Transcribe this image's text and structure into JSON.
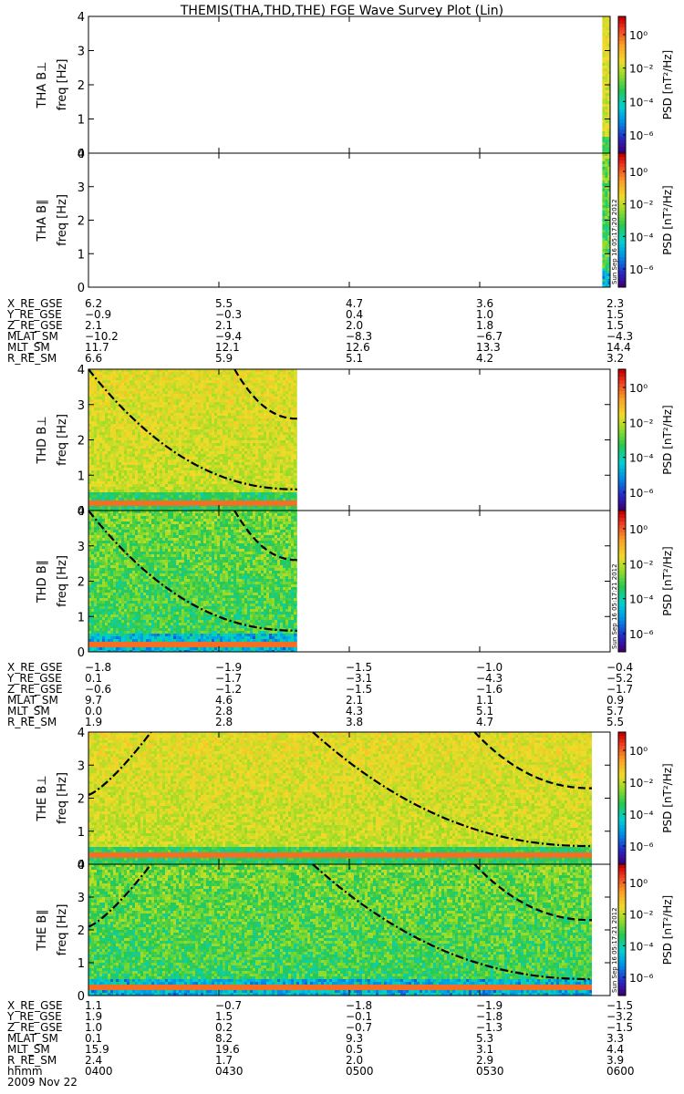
{
  "title": "THEMIS(THA,THD,THE) FGE Wave Survey Plot (Lin)",
  "freq_axis_label": "freq [Hz]",
  "colorbar": {
    "label": "PSD [nT²/Hz]",
    "scale": "log",
    "ticks": [
      "10⁰",
      "10⁻²",
      "10⁻⁴",
      "10⁻⁶"
    ]
  },
  "x_ticks": [
    "0400",
    "0430",
    "0500",
    "0530",
    "0600"
  ],
  "date_label": "2009 Nov 22",
  "time_row_label": "hhmm",
  "chart_data": [
    {
      "type": "heatmap",
      "title": "THA B⊥",
      "x": [
        "0400",
        "0600"
      ],
      "ylim": [
        0,
        4
      ],
      "y_ticks": [
        0,
        1,
        2,
        3,
        4
      ],
      "data_x_range": [
        0.985,
        1.0
      ],
      "curves": [],
      "bands": [],
      "stamp": ""
    },
    {
      "type": "heatmap",
      "title": "THA B∥",
      "x": [
        "0400",
        "0600"
      ],
      "ylim": [
        0,
        4
      ],
      "y_ticks": [
        0,
        1,
        2,
        3,
        4
      ],
      "data_x_range": [
        0.985,
        1.0
      ],
      "curves": [],
      "bands": [],
      "stamp": "Sun Sep 16 05:17:20 2012"
    },
    {
      "type": "heatmap",
      "title": "THD B⊥",
      "x": [
        "0400",
        "0600"
      ],
      "ylim": [
        0,
        4
      ],
      "y_ticks": [
        0,
        1,
        2,
        3,
        4
      ],
      "data_x_range": [
        0.0,
        0.4
      ],
      "curves": [
        {
          "style": "dashdot",
          "x0": 0.0,
          "y0": 4.0,
          "x1": 0.4,
          "y1": 0.6,
          "shape": "decay"
        },
        {
          "style": "dashed",
          "x0": 0.28,
          "y0": 4.0,
          "x1": 0.4,
          "y1": 2.6,
          "shape": "decay"
        }
      ],
      "bands": [
        0.25
      ],
      "stamp": ""
    },
    {
      "type": "heatmap",
      "title": "THD B∥",
      "x": [
        "0400",
        "0600"
      ],
      "ylim": [
        0,
        4
      ],
      "y_ticks": [
        0,
        1,
        2,
        3,
        4
      ],
      "data_x_range": [
        0.0,
        0.4
      ],
      "curves": [
        {
          "style": "dashdot",
          "x0": 0.0,
          "y0": 4.0,
          "x1": 0.4,
          "y1": 0.6,
          "shape": "decay"
        },
        {
          "style": "dashed",
          "x0": 0.28,
          "y0": 4.0,
          "x1": 0.4,
          "y1": 2.6,
          "shape": "decay"
        }
      ],
      "bands": [
        0.28
      ],
      "stamp": "Sun Sep 16 05:17:21 2012"
    },
    {
      "type": "heatmap",
      "title": "THE B⊥",
      "x": [
        "0400",
        "0600"
      ],
      "ylim": [
        0,
        4
      ],
      "y_ticks": [
        0,
        1,
        2,
        3,
        4
      ],
      "data_x_range": [
        0.0,
        0.965
      ],
      "curves": [
        {
          "style": "dashdot",
          "x0": 0.0,
          "y0": 2.1,
          "x1": 0.12,
          "y1": 4.0,
          "shape": "grow"
        },
        {
          "style": "dashdot",
          "x0": 0.43,
          "y0": 4.0,
          "x1": 0.965,
          "y1": 0.55,
          "shape": "decay"
        },
        {
          "style": "dashed",
          "x0": 0.74,
          "y0": 4.0,
          "x1": 0.965,
          "y1": 2.3,
          "shape": "decay"
        }
      ],
      "bands": [
        0.3
      ],
      "stamp": ""
    },
    {
      "type": "heatmap",
      "title": "THE B∥",
      "x": [
        "0400",
        "0600"
      ],
      "ylim": [
        0,
        4
      ],
      "y_ticks": [
        0,
        1,
        2,
        3,
        4
      ],
      "data_x_range": [
        0.0,
        0.965
      ],
      "curves": [
        {
          "style": "dashdot",
          "x0": 0.0,
          "y0": 2.1,
          "x1": 0.12,
          "y1": 4.0,
          "shape": "grow"
        },
        {
          "style": "dashdot",
          "x0": 0.43,
          "y0": 4.0,
          "x1": 0.965,
          "y1": 0.5,
          "shape": "decay"
        },
        {
          "style": "dashed",
          "x0": 0.74,
          "y0": 4.0,
          "x1": 0.965,
          "y1": 2.3,
          "shape": "decay"
        }
      ],
      "bands": [
        0.28
      ],
      "stamp": "Sun Sep 16 05:17:21 2012"
    }
  ],
  "ephemeris": [
    {
      "rows": [
        {
          "label": "X_RE_GSE",
          "values": [
            "6.2",
            "5.5",
            "4.7",
            "3.6",
            "2.3"
          ]
        },
        {
          "label": "Y_RE_GSE",
          "values": [
            "−0.9",
            "−0.3",
            "0.4",
            "1.0",
            "1.5"
          ]
        },
        {
          "label": "Z_RE_GSE",
          "values": [
            "2.1",
            "2.1",
            "2.0",
            "1.8",
            "1.5"
          ]
        },
        {
          "label": "MLAT_SM",
          "values": [
            "−10.2",
            "−9.4",
            "−8.3",
            "−6.7",
            "−4.3"
          ]
        },
        {
          "label": "MLT_SM",
          "values": [
            "11.7",
            "12.1",
            "12.6",
            "13.3",
            "14.4"
          ]
        },
        {
          "label": "R_RE_SM",
          "values": [
            "6.6",
            "5.9",
            "5.1",
            "4.2",
            "3.2"
          ]
        }
      ]
    },
    {
      "rows": [
        {
          "label": "X_RE_GSE",
          "values": [
            "−1.8",
            "−1.9",
            "−1.5",
            "−1.0",
            "−0.4"
          ]
        },
        {
          "label": "Y_RE_GSE",
          "values": [
            "0.1",
            "−1.7",
            "−3.1",
            "−4.3",
            "−5.2"
          ]
        },
        {
          "label": "Z_RE_GSE",
          "values": [
            "−0.6",
            "−1.2",
            "−1.5",
            "−1.6",
            "−1.7"
          ]
        },
        {
          "label": "MLAT_SM",
          "values": [
            "9.7",
            "4.6",
            "2.1",
            "1.1",
            "0.9"
          ]
        },
        {
          "label": "MLT_SM",
          "values": [
            "0.0",
            "2.8",
            "4.3",
            "5.1",
            "5.7"
          ]
        },
        {
          "label": "R_RE_SM",
          "values": [
            "1.9",
            "2.8",
            "3.8",
            "4.7",
            "5.5"
          ]
        }
      ]
    },
    {
      "rows": [
        {
          "label": "X_RE_GSE",
          "values": [
            "1.1",
            "−0.7",
            "−1.8",
            "−1.9",
            "−1.5"
          ]
        },
        {
          "label": "Y_RE_GSE",
          "values": [
            "1.9",
            "1.5",
            "−0.1",
            "−1.8",
            "−3.2"
          ]
        },
        {
          "label": "Z_RE_GSE",
          "values": [
            "1.0",
            "0.2",
            "−0.7",
            "−1.3",
            "−1.5"
          ]
        },
        {
          "label": "MLAT_SM",
          "values": [
            "0.1",
            "8.2",
            "9.3",
            "5.3",
            "3.3"
          ]
        },
        {
          "label": "MLT_SM",
          "values": [
            "15.9",
            "19.6",
            "0.5",
            "3.1",
            "4.4"
          ]
        },
        {
          "label": "R_RE_SM",
          "values": [
            "2.4",
            "1.7",
            "2.0",
            "2.9",
            "3.9"
          ]
        }
      ]
    }
  ]
}
